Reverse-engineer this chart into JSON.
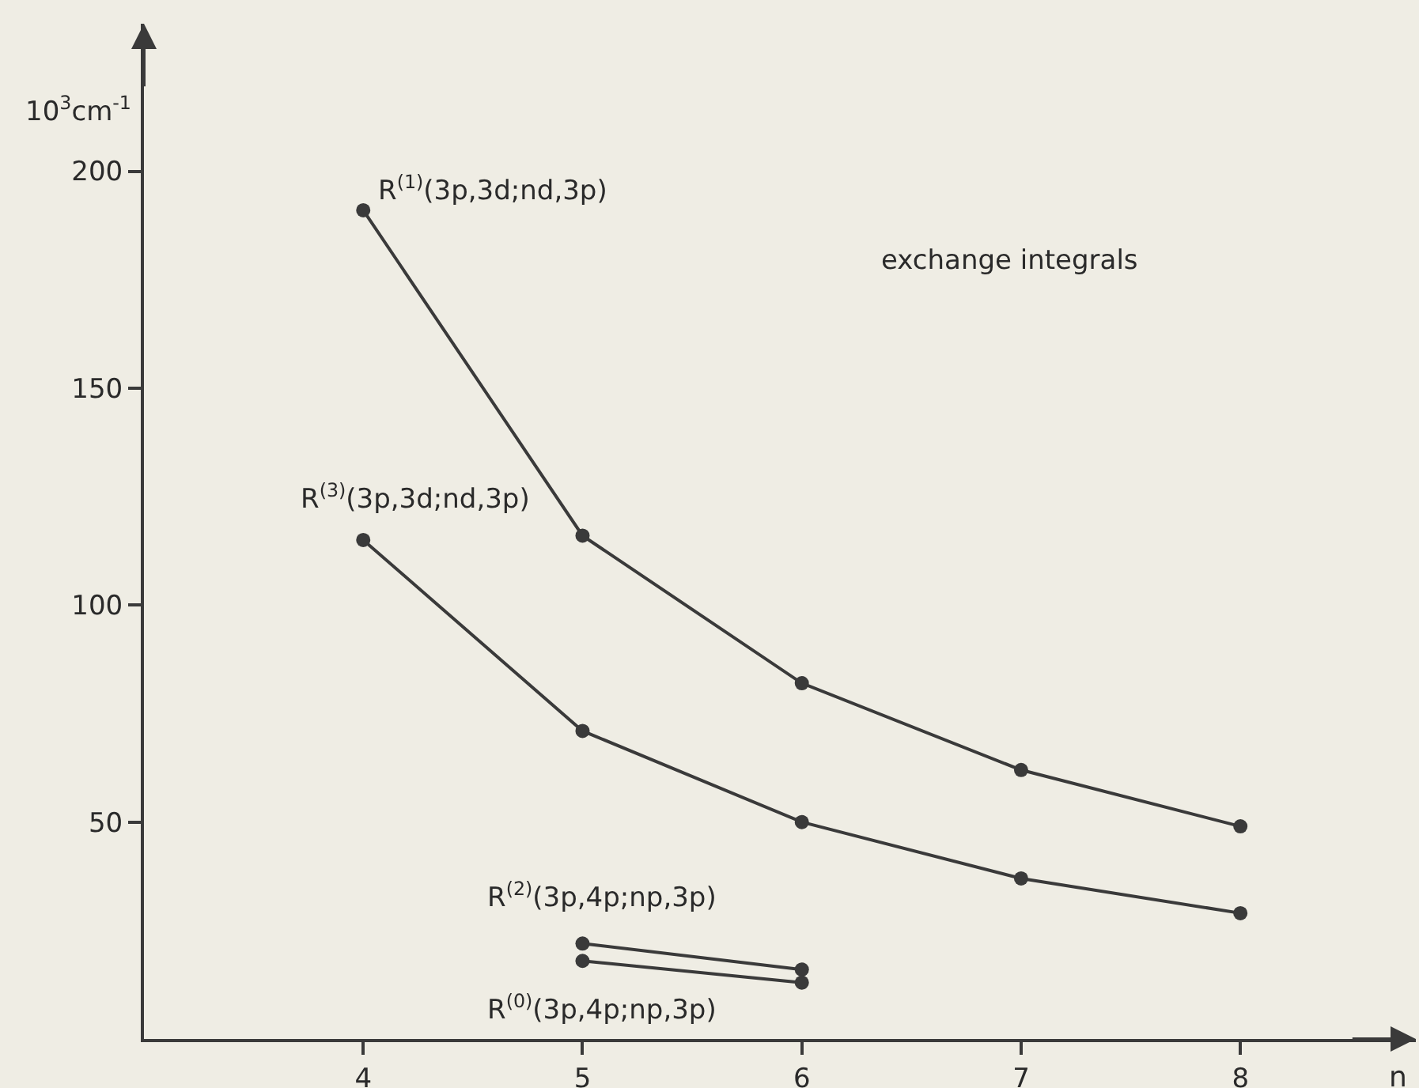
{
  "chart_data": {
    "type": "line",
    "xlabel": "n",
    "ylabel": "10$^{3}$cm$^{-1}$",
    "annotations": [
      "exchange integrals"
    ],
    "xlim": [
      3,
      8.8
    ],
    "ylim": [
      0,
      234
    ],
    "xticks": [
      4,
      5,
      6,
      7,
      8
    ],
    "yticks": [
      50,
      100,
      150,
      200
    ],
    "grid": false,
    "legend": false,
    "marker": "circle",
    "line_style": "solid",
    "series": [
      {
        "name": "R$^{(1)}$(3p,3d;nd,3p)",
        "color": "#3a3a3a",
        "x": [
          4,
          5,
          6,
          7,
          8
        ],
        "values": [
          191,
          116,
          82,
          62,
          49
        ]
      },
      {
        "name": "R$^{(3)}$(3p,3d;nd,3p)",
        "color": "#3a3a3a",
        "x": [
          4,
          5,
          6,
          7,
          8
        ],
        "values": [
          115,
          71,
          50,
          37,
          29
        ]
      },
      {
        "name": "R$^{(2)}$(3p,4p;np,3p)",
        "color": "#3a3a3a",
        "x": [
          5,
          6
        ],
        "values": [
          22,
          16
        ]
      },
      {
        "name": "R$^{(0)}$(3p,4p;np,3p)",
        "color": "#3a3a3a",
        "x": [
          5,
          6
        ],
        "values": [
          18,
          13
        ]
      }
    ]
  }
}
